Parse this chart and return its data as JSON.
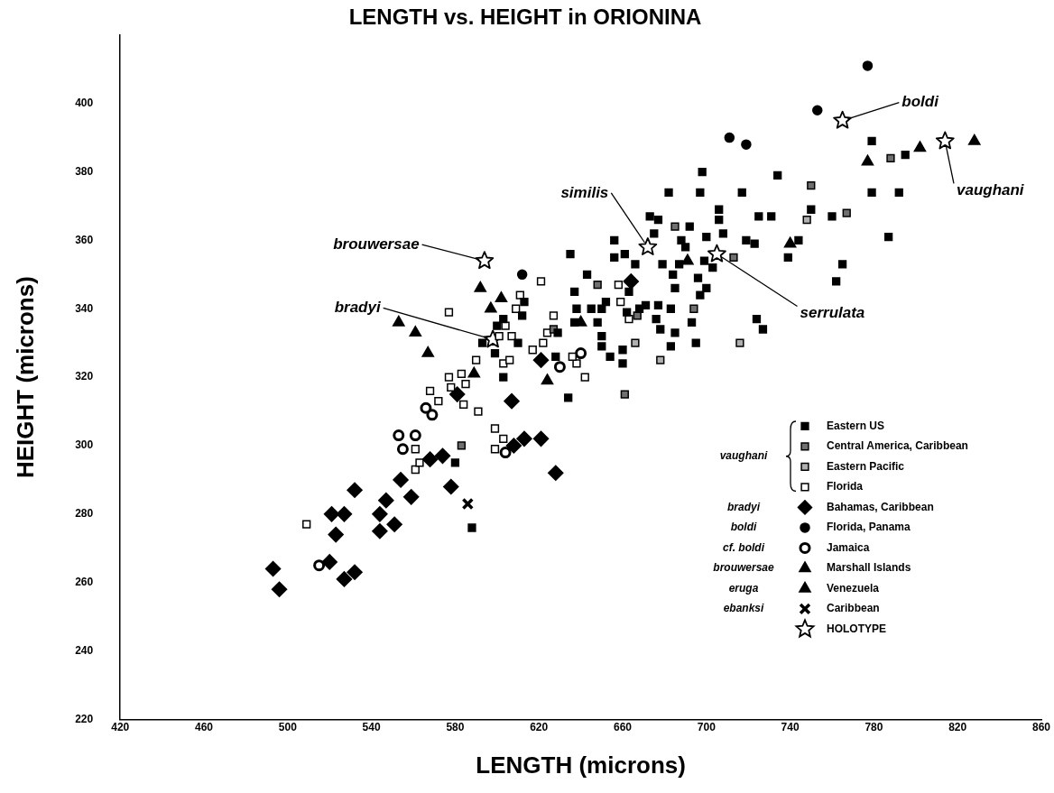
{
  "chart_data": {
    "type": "scatter",
    "title": "LENGTH vs. HEIGHT in ORIONINA",
    "xlabel": "LENGTH (microns)",
    "ylabel": "HEIGHT (microns)",
    "xlim": [
      420,
      860
    ],
    "xticks": [
      420,
      460,
      500,
      540,
      580,
      620,
      660,
      700,
      740,
      780,
      820,
      860
    ],
    "ylim": [
      220,
      420
    ],
    "yticks": [
      220,
      240,
      260,
      280,
      300,
      320,
      340,
      360,
      380,
      400
    ],
    "grid": false,
    "legend": "bottom right",
    "series": [
      {
        "name": "Eastern US",
        "color": "#000000",
        "marker": "square",
        "x": [
          588,
          580,
          603,
          599,
          600,
          593,
          610,
          612,
          613,
          603,
          629,
          628,
          634,
          635,
          637,
          643,
          638,
          637,
          645,
          648,
          650,
          652,
          650,
          650,
          654,
          656,
          656,
          661,
          663,
          662,
          660,
          660,
          666,
          668,
          671,
          673,
          677,
          675,
          676,
          677,
          678,
          679,
          682,
          683,
          684,
          685,
          683,
          685,
          687,
          688,
          690,
          692,
          693,
          695,
          697,
          698,
          696,
          697,
          700,
          699,
          700,
          703,
          706,
          706,
          708,
          717,
          719,
          723,
          725,
          731,
          734,
          724,
          727,
          739,
          744,
          750,
          760,
          762,
          765,
          779,
          779,
          787,
          792,
          795
        ],
        "values": [
          276,
          295,
          320,
          327,
          335,
          330,
          330,
          338,
          342,
          337,
          333,
          326,
          314,
          356,
          345,
          350,
          340,
          336,
          340,
          336,
          340,
          342,
          329,
          332,
          326,
          360,
          355,
          356,
          345,
          339,
          324,
          328,
          353,
          340,
          341,
          367,
          366,
          362,
          337,
          341,
          334,
          353,
          374,
          340,
          350,
          333,
          329,
          346,
          353,
          360,
          358,
          364,
          336,
          330,
          374,
          380,
          349,
          344,
          346,
          354,
          361,
          352,
          369,
          366,
          362,
          374,
          360,
          359,
          367,
          367,
          379,
          337,
          334,
          355,
          360,
          369,
          367,
          348,
          353,
          389,
          374,
          361,
          374,
          385
        ]
      },
      {
        "name": "Central America, Caribbean",
        "color": "#707070",
        "marker": "square",
        "x": [
          583,
          627,
          648,
          661,
          667,
          685,
          694,
          713,
          750,
          767,
          788
        ],
        "values": [
          300,
          334,
          347,
          315,
          338,
          364,
          340,
          355,
          376,
          368,
          384
        ]
      },
      {
        "name": "Eastern Pacific",
        "color": "#b0b0b0",
        "marker": "square",
        "x": [
          666,
          678,
          716,
          748
        ],
        "values": [
          330,
          325,
          330,
          366
        ]
      },
      {
        "name": "Florida",
        "color": "#ffffff",
        "marker": "square",
        "x": [
          509,
          561,
          561,
          563,
          568,
          572,
          577,
          578,
          583,
          585,
          584,
          591,
          590,
          577,
          599,
          599,
          603,
          601,
          603,
          604,
          606,
          607,
          609,
          611,
          621,
          617,
          622,
          624,
          627,
          638,
          642,
          658,
          659,
          663,
          636
        ],
        "values": [
          277,
          293,
          299,
          295,
          316,
          313,
          320,
          317,
          321,
          318,
          312,
          310,
          325,
          339,
          305,
          299,
          302,
          332,
          324,
          335,
          325,
          332,
          340,
          344,
          348,
          328,
          330,
          333,
          338,
          324,
          320,
          347,
          342,
          337,
          326
        ]
      },
      {
        "name": "Bahamas, Caribbean",
        "color": "#000000",
        "marker": "diamond",
        "x": [
          493,
          496,
          520,
          521,
          527,
          523,
          532,
          527,
          532,
          544,
          547,
          544,
          551,
          554,
          559,
          568,
          574,
          578,
          581,
          607,
          608,
          613,
          621,
          628,
          621,
          664
        ],
        "values": [
          264,
          258,
          266,
          280,
          280,
          274,
          287,
          261,
          263,
          280,
          284,
          275,
          277,
          290,
          285,
          296,
          297,
          288,
          315,
          313,
          300,
          302,
          302,
          292,
          325,
          348
        ]
      },
      {
        "name": "Florida, Panama",
        "color": "#000000",
        "marker": "circle",
        "x": [
          777,
          753,
          711,
          719,
          612
        ],
        "values": [
          411,
          398,
          390,
          388,
          350
        ]
      },
      {
        "name": "Jamaica",
        "color": "#ffffff",
        "marker": "circle",
        "x": [
          515,
          553,
          561,
          555,
          566,
          569,
          604,
          630,
          640
        ],
        "values": [
          265,
          303,
          303,
          299,
          311,
          309,
          298,
          323,
          327
        ]
      },
      {
        "name": "Marshall Islands",
        "color": "#000000",
        "marker": "triangle",
        "x": [
          592,
          602,
          597,
          553,
          561,
          567,
          589
        ],
        "values": [
          346,
          343,
          340,
          336,
          333,
          327,
          321
        ]
      },
      {
        "name": "Venezuela",
        "color": "#000000",
        "marker": "triangle",
        "x": [
          777,
          802,
          828,
          740,
          691,
          624,
          640
        ],
        "values": [
          383,
          387,
          389,
          359,
          354,
          319,
          336
        ]
      },
      {
        "name": "Caribbean",
        "color": "#000000",
        "marker": "cross",
        "x": [
          586
        ],
        "values": [
          283
        ]
      },
      {
        "name": "HOLOTYPE",
        "color": "#ffffff",
        "marker": "star",
        "x": [
          594,
          598,
          672,
          705,
          765,
          814
        ],
        "values": [
          354,
          331,
          358,
          356,
          395,
          389
        ]
      }
    ],
    "annotations": [
      {
        "text": "brouwersae",
        "x": 594,
        "y": 354
      },
      {
        "text": "bradyi",
        "x": 598,
        "y": 331
      },
      {
        "text": "similis",
        "x": 672,
        "y": 358
      },
      {
        "text": "serrulata",
        "x": 705,
        "y": 356
      },
      {
        "text": "boldi",
        "x": 765,
        "y": 395
      },
      {
        "text": "vaughani",
        "x": 814,
        "y": 389
      },
      "vaughani",
      "bradyi",
      "boldi",
      "cf. boldi",
      "brouwersae",
      "eruga",
      "ebanksi"
    ]
  }
}
